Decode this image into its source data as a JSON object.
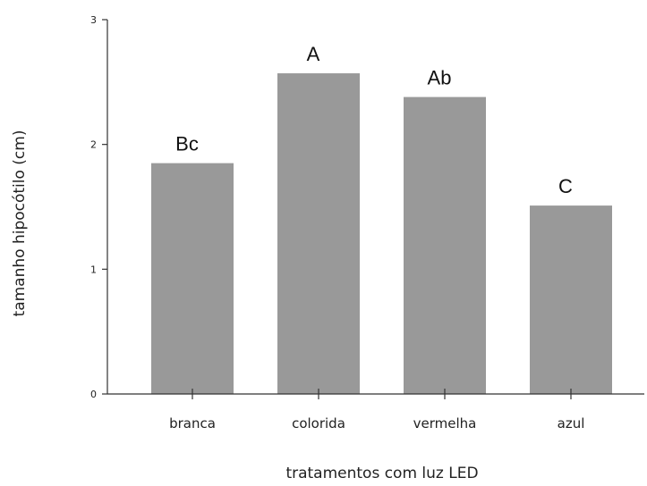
{
  "chart_data": {
    "type": "bar",
    "title": "",
    "xlabel": "tratamentos com luz LED",
    "ylabel": "tamanho hipocótilo (cm)",
    "categories": [
      "branca",
      "colorida",
      "vermelha",
      "azul"
    ],
    "values": [
      1.85,
      2.57,
      2.38,
      1.51
    ],
    "data_labels": [
      "Bc",
      "A",
      "Ab",
      "C"
    ],
    "ylim": [
      0,
      3
    ],
    "yticks": [
      0,
      1,
      2,
      3
    ],
    "grid": false,
    "legend": "none",
    "colors": {
      "bar": "#999999",
      "axis": "#333333",
      "text": "#222222"
    }
  }
}
